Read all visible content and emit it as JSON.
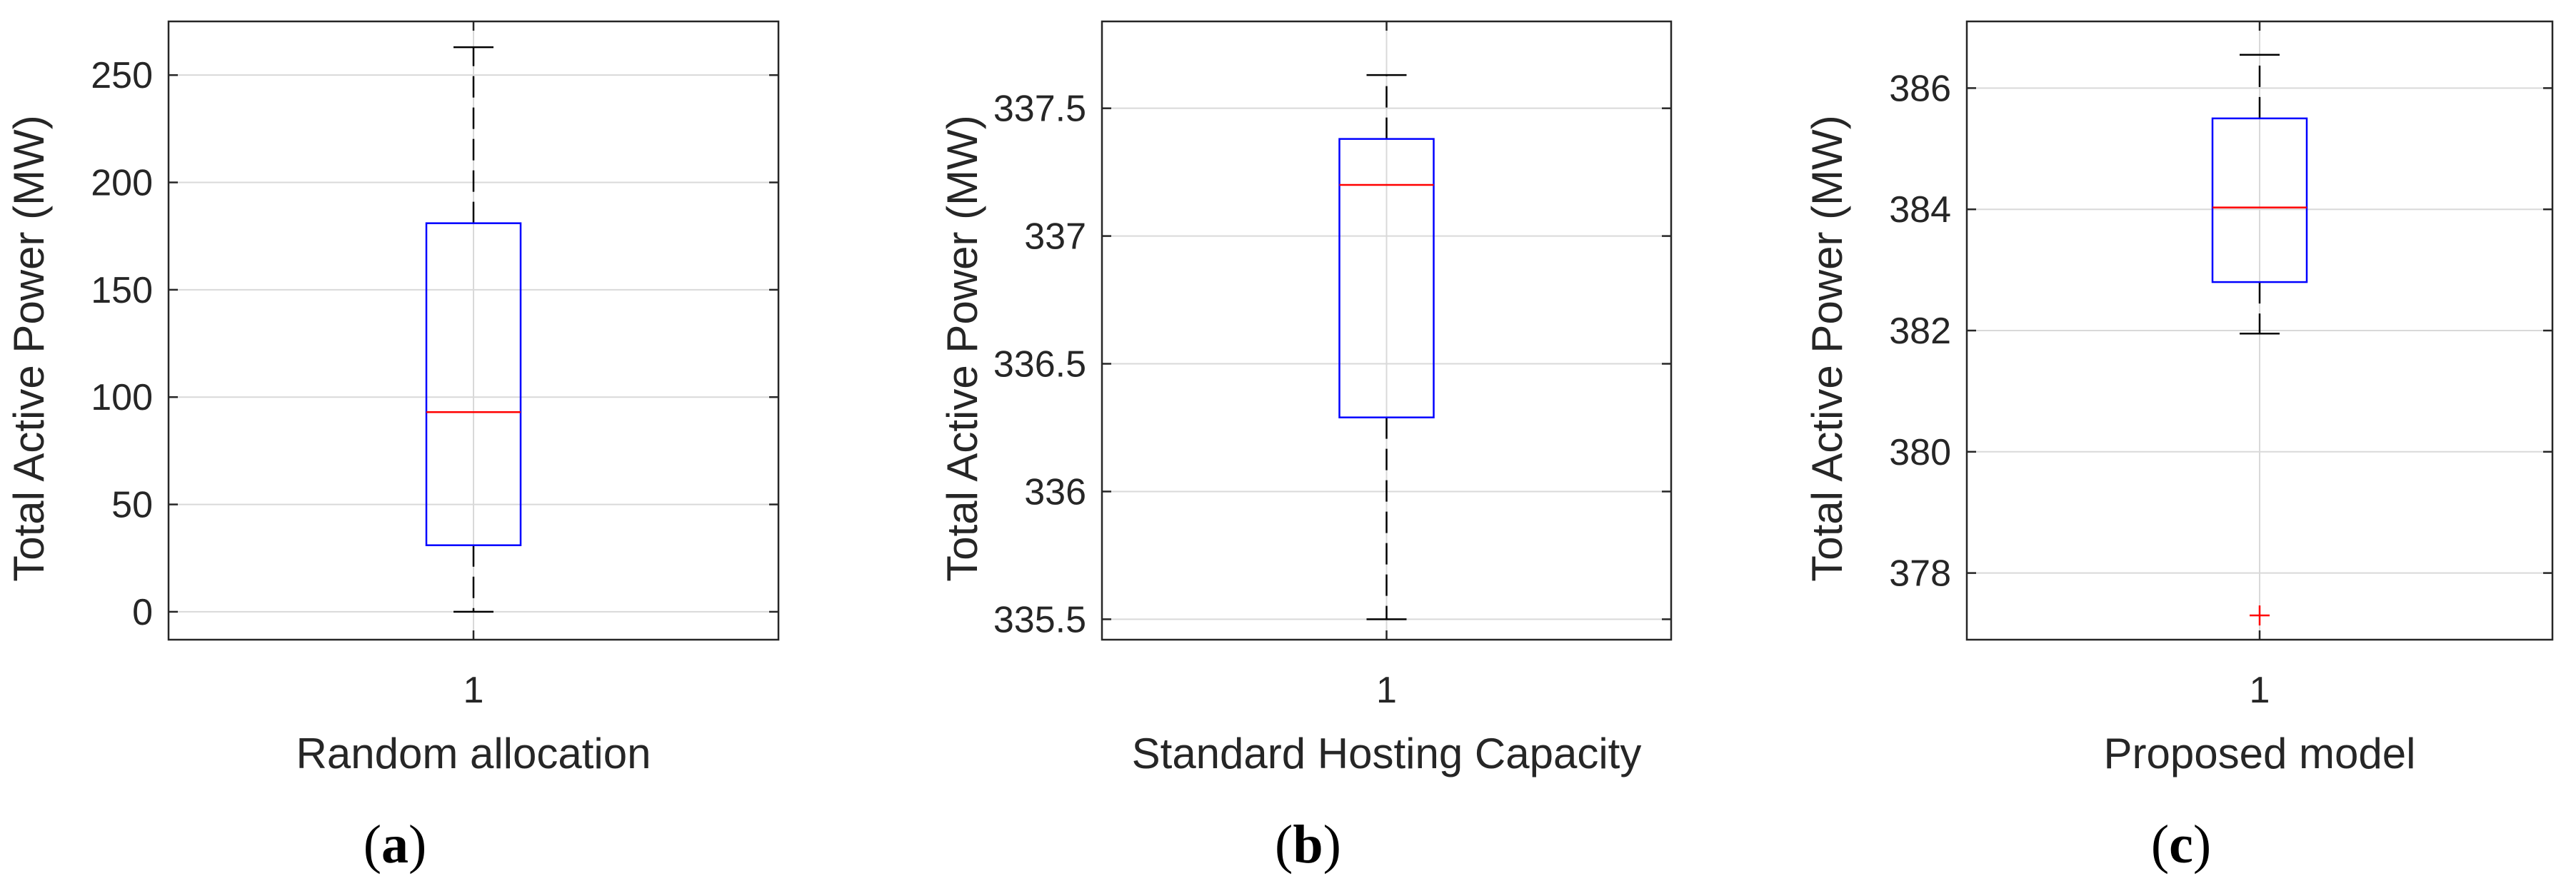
{
  "colors": {
    "box": "#0000ff",
    "median": "#ff0000",
    "outlier": "#ff0000",
    "whisker": "#000000",
    "grid": "#d9d9d9",
    "axis": "#262626"
  },
  "chart_data": [
    {
      "type": "box",
      "panel_label": "a",
      "category": "1",
      "xlabel": "Random allocation",
      "ylabel": "Total Active Power (MW)",
      "ylim": [
        -13,
        275
      ],
      "yticks": [
        "0",
        "50",
        "100",
        "150",
        "200",
        "250"
      ],
      "ytick_values": [
        0,
        50,
        100,
        150,
        200,
        250
      ],
      "grid": true,
      "stats": {
        "whisker_low": 0,
        "q1": 31,
        "median": 93,
        "q3": 181,
        "whisker_high": 263
      },
      "outliers": []
    },
    {
      "type": "box",
      "panel_label": "b",
      "category": "1",
      "xlabel": "Standard Hosting Capacity",
      "ylabel": "Total Active Power (MW)",
      "ylim": [
        335.42,
        337.84
      ],
      "yticks": [
        "335.5",
        "336",
        "336.5",
        "337",
        "337.5"
      ],
      "ytick_values": [
        335.5,
        336,
        336.5,
        337,
        337.5
      ],
      "grid": true,
      "stats": {
        "whisker_low": 335.5,
        "q1": 336.29,
        "median": 337.2,
        "q3": 337.38,
        "whisker_high": 337.63
      },
      "outliers": []
    },
    {
      "type": "box",
      "panel_label": "c",
      "category": "1",
      "xlabel": "Proposed model",
      "ylabel": "Total Active Power (MW)",
      "ylim": [
        376.9,
        387.1
      ],
      "yticks": [
        "378",
        "380",
        "382",
        "384",
        "386"
      ],
      "ytick_values": [
        378,
        380,
        382,
        384,
        386
      ],
      "grid": true,
      "stats": {
        "whisker_low": 381.95,
        "q1": 382.8,
        "median": 384.03,
        "q3": 385.5,
        "whisker_high": 386.55
      },
      "outliers": [
        377.3
      ]
    }
  ]
}
